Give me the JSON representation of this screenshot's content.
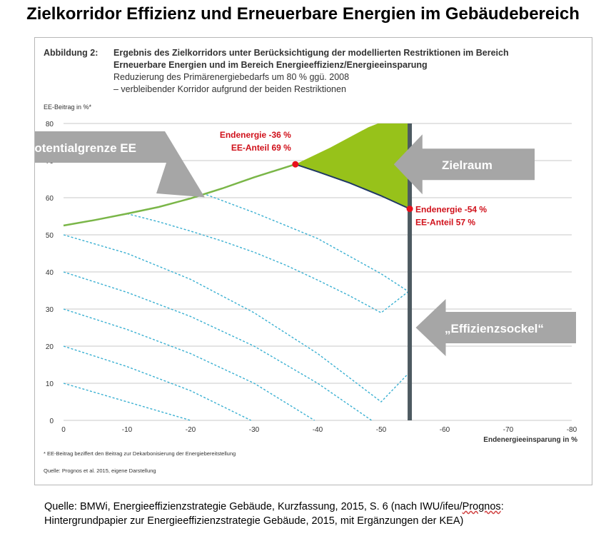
{
  "page": {
    "title": "Zielkorridor Effizienz und Erneuerbare Energien im Gebäudebereich"
  },
  "figure": {
    "label": "Abbildung 2:",
    "heading_line1": "Ergebnis des Zielkorridors unter Berücksichtigung der modellierten Restriktionen im Bereich",
    "heading_line2": "Erneuerbare Energien und im Bereich Energieeffizienz/Energieeinsparung",
    "subheading_line1": "Reduzierung des Primärenergiebedarfs um 80 % ggü. 2008",
    "subheading_line2": "– verbleibender Korridor aufgrund der beiden Restriktionen",
    "footnote": "* EE-Beitrag beziffert den Beitrag zur Dekarbonisierung der Energiebereitstellung",
    "source": "Quelle: Prognos et al. 2015, eigene Darstellung"
  },
  "footer": {
    "line1_prefix": "Quelle: BMWi, Energieeffizienzstrategie Gebäude, Kurzfassung, 2015, S. 6 (nach IWU/ifeu/",
    "line1_wavy": "Prognos",
    "line1_suffix": ":",
    "line2": "Hintergrundpapier zur Energieeffizienzstrategie Gebäude, 2015, mit Ergänzungen der KEA)"
  },
  "chart_data": {
    "type": "line",
    "xlabel": "Endenergieeinsparung in %",
    "ylabel": "EE-Beitrag in %*",
    "xlim": [
      0,
      -80
    ],
    "ylim": [
      0,
      80
    ],
    "x_ticks": [
      0,
      -10,
      -20,
      -30,
      -40,
      -50,
      -60,
      -70,
      -80
    ],
    "y_ticks": [
      0,
      10,
      20,
      30,
      40,
      50,
      60,
      70,
      80
    ],
    "grid": true,
    "colors": {
      "potential_line": "#7ab648",
      "iso_lines": "#3ab0d2",
      "target_area": "#97c21a",
      "target_lower_edge": "#1f3864",
      "efficiency_floor": "#4d5a61",
      "markers": "#e8101c",
      "annotation_text": "#d0101a",
      "callout_fill": "#a6a6a6",
      "callout_text": "#ffffff"
    },
    "potential_limit": {
      "x": [
        0,
        -5,
        -10,
        -15,
        -20,
        -25,
        -30,
        -36.5
      ],
      "y": [
        52.5,
        54.0,
        55.7,
        57.5,
        59.8,
        62.5,
        65.5,
        69.0
      ]
    },
    "potential_limit_extension": {
      "x": [
        -36.5,
        -42,
        -48,
        -49.5
      ],
      "y": [
        69.0,
        73.5,
        79.0,
        80.0
      ]
    },
    "target_area_lower_edge": {
      "x": [
        -36.5,
        -40,
        -45,
        -50,
        -54.5
      ],
      "y": [
        69.0,
        67.0,
        64.0,
        60.5,
        57.0
      ]
    },
    "efficiency_floor_x": -54.5,
    "iso_lines": [
      {
        "x": [
          -10,
          -15,
          -20,
          -25,
          -30,
          -35,
          -40,
          -45,
          -50,
          -54.5
        ],
        "y": [
          55.7,
          53.5,
          51.0,
          48.3,
          45.3,
          41.8,
          37.8,
          33.6,
          29.0,
          35.0
        ]
      },
      {
        "x": [
          -22.5,
          -30,
          -40,
          -50,
          -54.5
        ],
        "y": [
          60.8,
          56.0,
          49.0,
          39.5,
          34.5
        ]
      },
      {
        "x": [
          0,
          -10,
          -20,
          -30,
          -40,
          -50,
          -54.5
        ],
        "y": [
          50,
          45,
          38,
          29,
          18,
          5,
          13
        ]
      },
      {
        "x": [
          0,
          -10,
          -20,
          -30,
          -40,
          -48.5
        ],
        "y": [
          40,
          34.5,
          28,
          20,
          10,
          0
        ]
      },
      {
        "x": [
          0,
          -10,
          -20,
          -30,
          -39.5
        ],
        "y": [
          30,
          24.5,
          18,
          10,
          0
        ]
      },
      {
        "x": [
          0,
          -10,
          -20,
          -29.5
        ],
        "y": [
          20,
          14.5,
          8,
          0
        ]
      },
      {
        "x": [
          0,
          -10,
          -20
        ],
        "y": [
          10,
          5,
          0
        ]
      }
    ],
    "points": [
      {
        "x": -36.5,
        "y": 69.0,
        "label1": "Endenergie -36 %",
        "label2": "EE-Anteil 69 %"
      },
      {
        "x": -54.5,
        "y": 57.0,
        "label1": "Endenergie -54 %",
        "label2": "EE-Anteil 57 %"
      }
    ],
    "callouts": [
      {
        "text": "Potentialgrenze EE",
        "direction": "right-down",
        "target_x": -22,
        "target_y": 60.5
      },
      {
        "text": "Zielraum",
        "direction": "left",
        "target_x": -52,
        "target_y": 69
      },
      {
        "text": "„Effizienzsockel“",
        "direction": "left",
        "target_x": -55,
        "target_y": 25
      }
    ]
  }
}
